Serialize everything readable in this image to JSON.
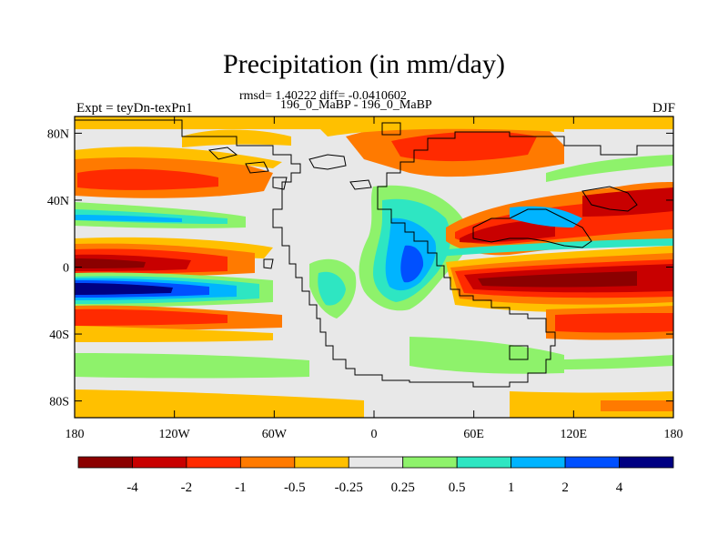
{
  "title": "Precipitation (in mm/day)",
  "stats": "rmsd= 1.40222 diff= -0.0410602",
  "runs": "196_0_MaBP - 196_0_MaBP",
  "expt_label": "Expt = teyDn-texPn1",
  "season": "DJF",
  "lat_ticks": [
    "80N",
    "40N",
    "0",
    "40S",
    "80S"
  ],
  "lon_ticks": [
    "180",
    "120W",
    "60W",
    "0",
    "60E",
    "120E",
    "180"
  ],
  "colorbar": {
    "colors": [
      "#8b0000",
      "#c80000",
      "#ff2a00",
      "#ff7a00",
      "#ffc000",
      "#e8e8e8",
      "#8ef26b",
      "#2ee6c2",
      "#00b4ff",
      "#0050ff",
      "#000082"
    ],
    "labels": [
      "-4",
      "-2",
      "-1",
      "-0.5",
      "-0.25",
      "0.25",
      "0.5",
      "1",
      "2",
      "4"
    ]
  },
  "chart_data": {
    "type": "heatmap",
    "variable": "Precipitation difference",
    "units": "mm/day",
    "season": "DJF",
    "x_range": [
      -180,
      180
    ],
    "y_range": [
      -90,
      90
    ],
    "lon_ticks": [
      -180,
      -120,
      -60,
      0,
      60,
      120,
      180
    ],
    "lat_ticks": [
      80,
      40,
      0,
      -40,
      -80
    ],
    "levels": [
      -4,
      -2,
      -1,
      -0.5,
      -0.25,
      0.25,
      0.5,
      1,
      2,
      4
    ],
    "rmsd": 1.40222,
    "diff": -0.0410602
  }
}
